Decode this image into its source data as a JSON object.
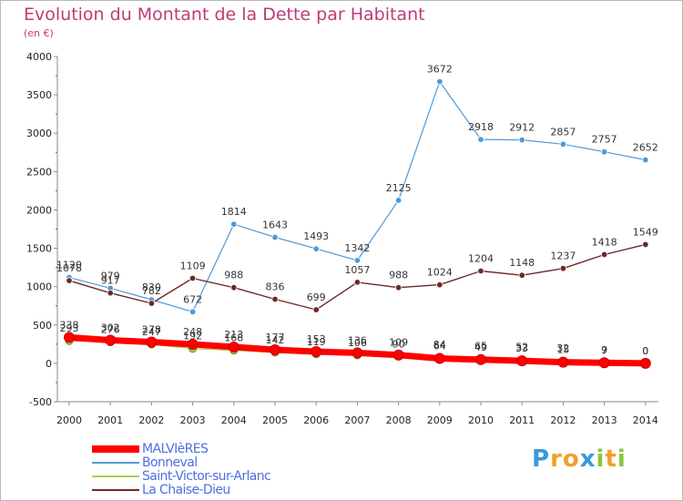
{
  "title": "Evolution du Montant de la Dette par Habitant",
  "subtitle": "(en €)",
  "brand": {
    "letters": [
      "P",
      "r",
      "o",
      "x",
      "i",
      "t",
      "i"
    ],
    "colors": [
      "#3a9ad9",
      "#f0a12a",
      "#f0a12a",
      "#3a9ad9",
      "#8cc63f",
      "#f0a12a",
      "#8cc63f"
    ]
  },
  "chart_data": {
    "type": "line",
    "x": [
      "2000",
      "2001",
      "2002",
      "2003",
      "2004",
      "2005",
      "2006",
      "2007",
      "2008",
      "2009",
      "2010",
      "2011",
      "2012",
      "2013",
      "2014"
    ],
    "ylim": [
      -500,
      4000
    ],
    "yticks": [
      "4000",
      "3500",
      "3000",
      "2500",
      "2000",
      "1500",
      "1000",
      "500",
      "0",
      "-500"
    ],
    "grid": false,
    "legend_position": "bottom-left",
    "series": [
      {
        "name": "MALVIèRES",
        "color": "#ff0000",
        "values": [
          338,
          302,
          278,
          248,
          213,
          177,
          153,
          136,
          109,
          64,
          49,
          33,
          15,
          7,
          0
        ],
        "labels": [
          "338",
          "302",
          "278",
          "248",
          "213",
          "177",
          "153",
          "136",
          "109",
          "64",
          "49",
          "33",
          "15",
          "7",
          "0"
        ]
      },
      {
        "name": "Bonneval",
        "color": "#4f9ad8",
        "values": [
          1120,
          979,
          830,
          672,
          1814,
          1643,
          1493,
          1342,
          2125,
          3672,
          2918,
          2912,
          2857,
          2757,
          2652
        ],
        "labels": [
          "1120",
          "979",
          "830",
          "672",
          "1814",
          "1643",
          "1493",
          "1342",
          "2125",
          "3672",
          "2918",
          "2912",
          "2857",
          "2757",
          "2652"
        ]
      },
      {
        "name": "Saint-Victor-sur-Arlanc",
        "color": "#a8d050",
        "values": [
          293,
          276,
          247,
          192,
          168,
          142,
          119,
          106,
          90,
          84,
          65,
          52,
          32,
          9,
          0
        ],
        "labels": [
          "293",
          "276",
          "247",
          "192",
          "168",
          "142",
          "119",
          "106",
          "90",
          "84",
          "65",
          "52",
          "32",
          "9",
          "0"
        ]
      },
      {
        "name": "La Chaise-Dieu",
        "color": "#6e2828",
        "values": [
          1078,
          917,
          782,
          1109,
          988,
          836,
          699,
          1057,
          988,
          1024,
          1204,
          1148,
          1237,
          1418,
          1549
        ],
        "labels": [
          "1078",
          "917",
          "782",
          "1109",
          "988",
          "836",
          "699",
          "1057",
          "988",
          "1024",
          "1204",
          "1148",
          "1237",
          "1418",
          "1549"
        ]
      }
    ]
  }
}
